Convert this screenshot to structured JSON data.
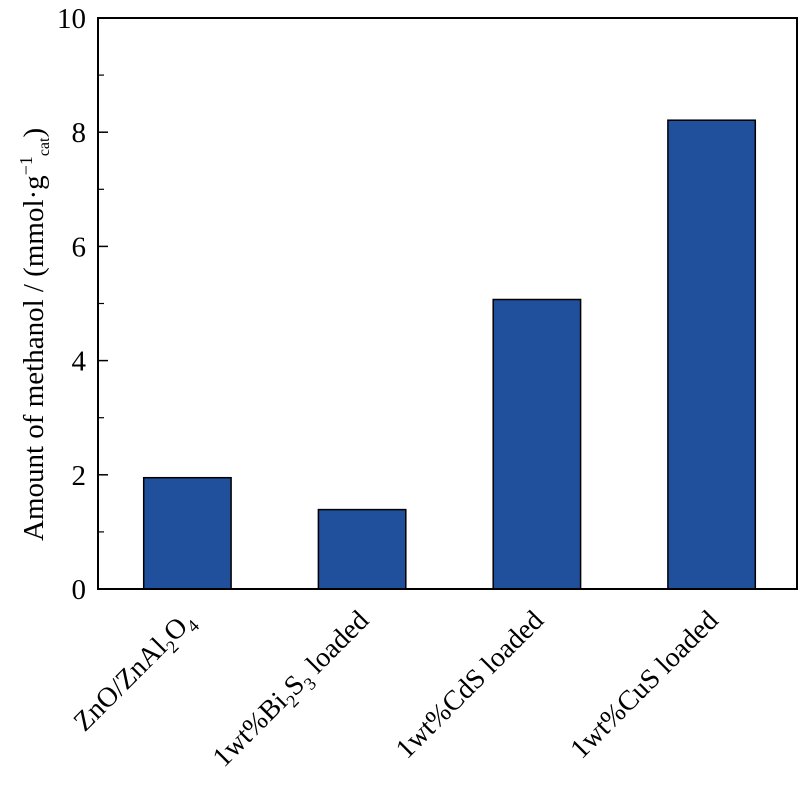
{
  "chart_data": {
    "type": "bar",
    "categories": [
      "ZnO/ZnAl2O4",
      "1wt%Bi2S3 loaded",
      "1wt%CdS loaded",
      "1wt%CuS loaded"
    ],
    "values": [
      1.95,
      1.39,
      5.07,
      8.21
    ],
    "xlabel": "",
    "ylabel": {
      "text": "Amount of methanol / (mmol·g",
      "superscript": "−1",
      "subscript": "cat",
      "suffix": ")"
    },
    "ylim": [
      0,
      10
    ],
    "yticks": [
      0,
      2,
      4,
      6,
      8,
      10
    ],
    "y_minor_ticks": [
      1,
      3,
      5,
      7,
      9
    ],
    "grid": false,
    "bar_color": "#204f9b",
    "edge_color": "#000000"
  }
}
